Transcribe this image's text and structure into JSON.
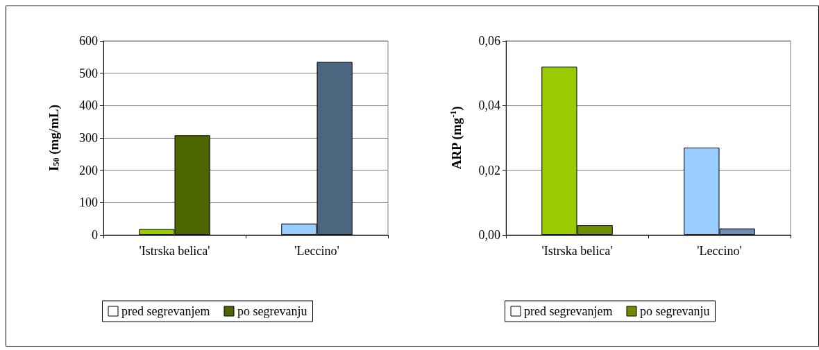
{
  "chart_data": [
    {
      "type": "bar",
      "ylabel": "I$_{50}$ (mg/mL)",
      "categories": [
        "'Istrska belica'",
        "'Leccino'"
      ],
      "ylim": [
        0,
        600
      ],
      "yticks": [
        0,
        100,
        200,
        300,
        400,
        500,
        600
      ],
      "grid": "y",
      "legend": "bottom",
      "series": [
        {
          "name": "pred segrevanjem",
          "color": "#ffffff",
          "colors": [
            "#99cc00",
            "#99ccff"
          ],
          "values": [
            18,
            35
          ]
        },
        {
          "name": "po segrevanju",
          "colors": [
            "#4d6600",
            "#4d6680"
          ],
          "values": [
            308,
            535
          ]
        }
      ]
    },
    {
      "type": "bar",
      "ylabel": "ARP (mg$^{-1}$)",
      "categories": [
        "'Istrska belica'",
        "'Leccino'"
      ],
      "ylim": [
        0,
        0.06
      ],
      "yticks": [
        {
          "value": 0,
          "label": "0,00"
        },
        {
          "value": 0.02,
          "label": "0,02"
        },
        {
          "value": 0.04,
          "label": "0,04"
        },
        {
          "value": 0.06,
          "label": "0,06"
        }
      ],
      "grid": "y",
      "legend": "bottom",
      "series": [
        {
          "name": "pred segrevanjem",
          "color": "#ffffff",
          "colors": [
            "#99cc00",
            "#99ccff"
          ],
          "values": [
            0.052,
            0.027
          ]
        },
        {
          "name": "po segrevanju",
          "colors": [
            "#6b8f00",
            "#6b8fb3"
          ],
          "values": [
            0.003,
            0.002
          ]
        }
      ]
    }
  ]
}
